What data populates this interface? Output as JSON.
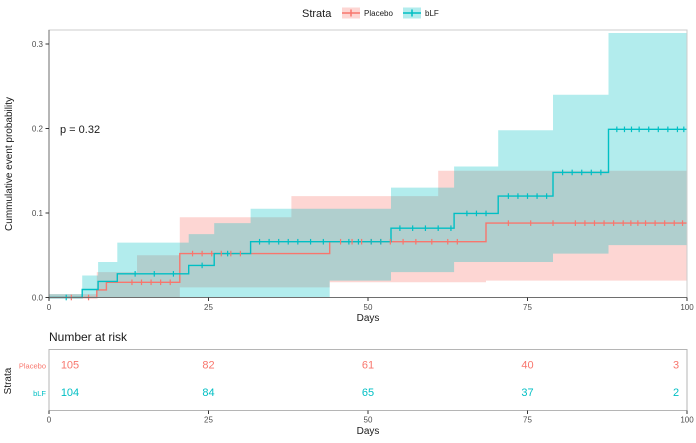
{
  "legend": {
    "title": "Strata",
    "items": [
      {
        "label": "Placebo"
      },
      {
        "label": "bLF"
      }
    ]
  },
  "chart_data": {
    "type": "line",
    "subtype": "cumulative-incidence-step-curves-with-confidence-bands",
    "title": "",
    "xlabel": "Days",
    "ylabel": "Cummulative event probability",
    "p_value": "p = 0.32",
    "xlim": [
      0,
      100
    ],
    "ylim": [
      0,
      0.31
    ],
    "x_ticks": [
      0,
      25,
      50,
      75,
      100
    ],
    "y_ticks": [
      {
        "v": 0.0,
        "label": "0.0"
      },
      {
        "v": 0.1,
        "label": "0.1"
      },
      {
        "v": 0.2,
        "label": "0.2"
      },
      {
        "v": 0.3,
        "label": "0.3"
      }
    ],
    "grid": "off",
    "legend_position": "top",
    "band_opacity": 0.3,
    "end_day": 100,
    "series": [
      {
        "name": "Placebo",
        "color": "#F8766D",
        "steps": [
          [
            0,
            0
          ],
          [
            7.5,
            0.009
          ],
          [
            9,
            0.018
          ],
          [
            20.5,
            0.052
          ],
          [
            44,
            0.066
          ],
          [
            68.5,
            0.088
          ]
        ],
        "ci_upper": [
          [
            0,
            0.004
          ],
          [
            7.5,
            0.03
          ],
          [
            13.8,
            0.05
          ],
          [
            20.5,
            0.095
          ],
          [
            38,
            0.12
          ],
          [
            61,
            0.15
          ]
        ],
        "ci_lower": [
          [
            0,
            0
          ],
          [
            20.5,
            0.012
          ],
          [
            44,
            0.018
          ],
          [
            68.5,
            0.02
          ]
        ],
        "censor_days": [
          3.5,
          6.2,
          13,
          14.5,
          16,
          17.5,
          19,
          22.5,
          24,
          25.5,
          27,
          28.5,
          30,
          45.7,
          47.5,
          49,
          50.5,
          52,
          53.5,
          55.5,
          57.5,
          60,
          62.5,
          64,
          72,
          75.5,
          79,
          82.5,
          84,
          85.5,
          87,
          88.5,
          90,
          91.2,
          92.3,
          93.5,
          95,
          96.5,
          98,
          99.3
        ],
        "final_value": 0.088
      },
      {
        "name": "bLF",
        "color": "#00BFC4",
        "steps": [
          [
            0,
            0
          ],
          [
            5.2,
            0.0095
          ],
          [
            7.7,
            0.019
          ],
          [
            10.7,
            0.028
          ],
          [
            21.9,
            0.038
          ],
          [
            25.9,
            0.052
          ],
          [
            31.6,
            0.066
          ],
          [
            53.6,
            0.082
          ],
          [
            63.5,
            0.0995
          ],
          [
            70.4,
            0.12
          ],
          [
            79,
            0.148
          ],
          [
            87.7,
            0.199
          ]
        ],
        "ci_upper": [
          [
            0,
            0.004
          ],
          [
            5.2,
            0.026
          ],
          [
            7.7,
            0.042
          ],
          [
            10.7,
            0.065
          ],
          [
            21.9,
            0.075
          ],
          [
            25.9,
            0.088
          ],
          [
            31.6,
            0.105
          ],
          [
            53.6,
            0.13
          ],
          [
            63.5,
            0.155
          ],
          [
            70.4,
            0.198
          ],
          [
            79,
            0.24
          ],
          [
            87.7,
            0.313
          ]
        ],
        "ci_lower": [
          [
            0,
            0
          ],
          [
            44,
            0.02
          ],
          [
            53.6,
            0.03
          ],
          [
            63.5,
            0.042
          ],
          [
            79,
            0.052
          ],
          [
            87.7,
            0.062
          ]
        ],
        "censor_days": [
          2.7,
          13.5,
          16.5,
          19.5,
          24,
          28,
          33,
          34.5,
          36,
          37.5,
          39,
          41,
          43,
          47,
          48.5,
          50.5,
          52,
          55,
          57,
          59,
          61,
          63,
          65.5,
          67,
          68.5,
          72,
          73.5,
          75,
          76.5,
          78,
          80.5,
          82,
          83.5,
          85,
          86.5,
          89,
          90.2,
          91.3,
          92.5,
          94,
          95.5,
          97,
          98.5,
          99.5
        ],
        "final_value": 0.199
      }
    ]
  },
  "risk_table": {
    "title": "Number at risk",
    "ylabel": "Strata",
    "xlabel": "Days",
    "x_ticks": [
      0,
      25,
      50,
      75,
      100
    ],
    "rows": [
      {
        "label": "Placebo",
        "color": "#F8766D",
        "counts": [
          "105",
          "82",
          "61",
          "40",
          "3"
        ]
      },
      {
        "label": "bLF",
        "color": "#00BFC4",
        "counts": [
          "104",
          "84",
          "65",
          "37",
          "2"
        ]
      }
    ]
  }
}
